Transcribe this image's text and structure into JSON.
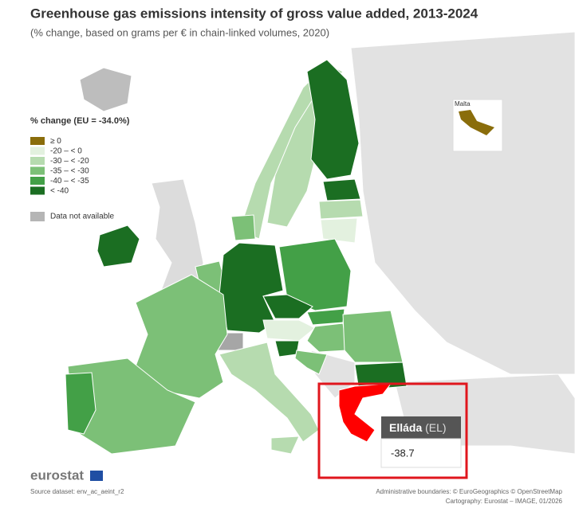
{
  "header": {
    "title": "Greenhouse gas emissions intensity of gross value added, 2013-2024",
    "subtitle": "(% change, based on grams per € in chain-linked volumes, 2020)"
  },
  "legend": {
    "title": "% change (EU = -34.0%)",
    "items": [
      {
        "label": "≥ 0",
        "color": "#8a6d0b"
      },
      {
        "label": "-20 – < 0",
        "color": "#e3f1df"
      },
      {
        "label": "-30 – < -20",
        "color": "#b6dbaf"
      },
      {
        "label": "-35 – < -30",
        "color": "#7cc077"
      },
      {
        "label": "-40 – < -35",
        "color": "#43a047"
      },
      {
        "label": "< -40",
        "color": "#1b6e22"
      }
    ],
    "na": {
      "label": "Data not available",
      "color": "#b5b5b5"
    }
  },
  "inset": {
    "label": "Malta"
  },
  "tooltip": {
    "name": "Elláda",
    "code": "(EL)",
    "value": -38.7
  },
  "footer": {
    "logo": "eurostat",
    "source": "Source dataset: env_ac_aeint_r2",
    "credits": [
      "Administrative boundaries: © EuroGeographics © OpenStreetMap",
      "Cartography: Eurostat – IMAGE, 01/2026"
    ]
  }
}
